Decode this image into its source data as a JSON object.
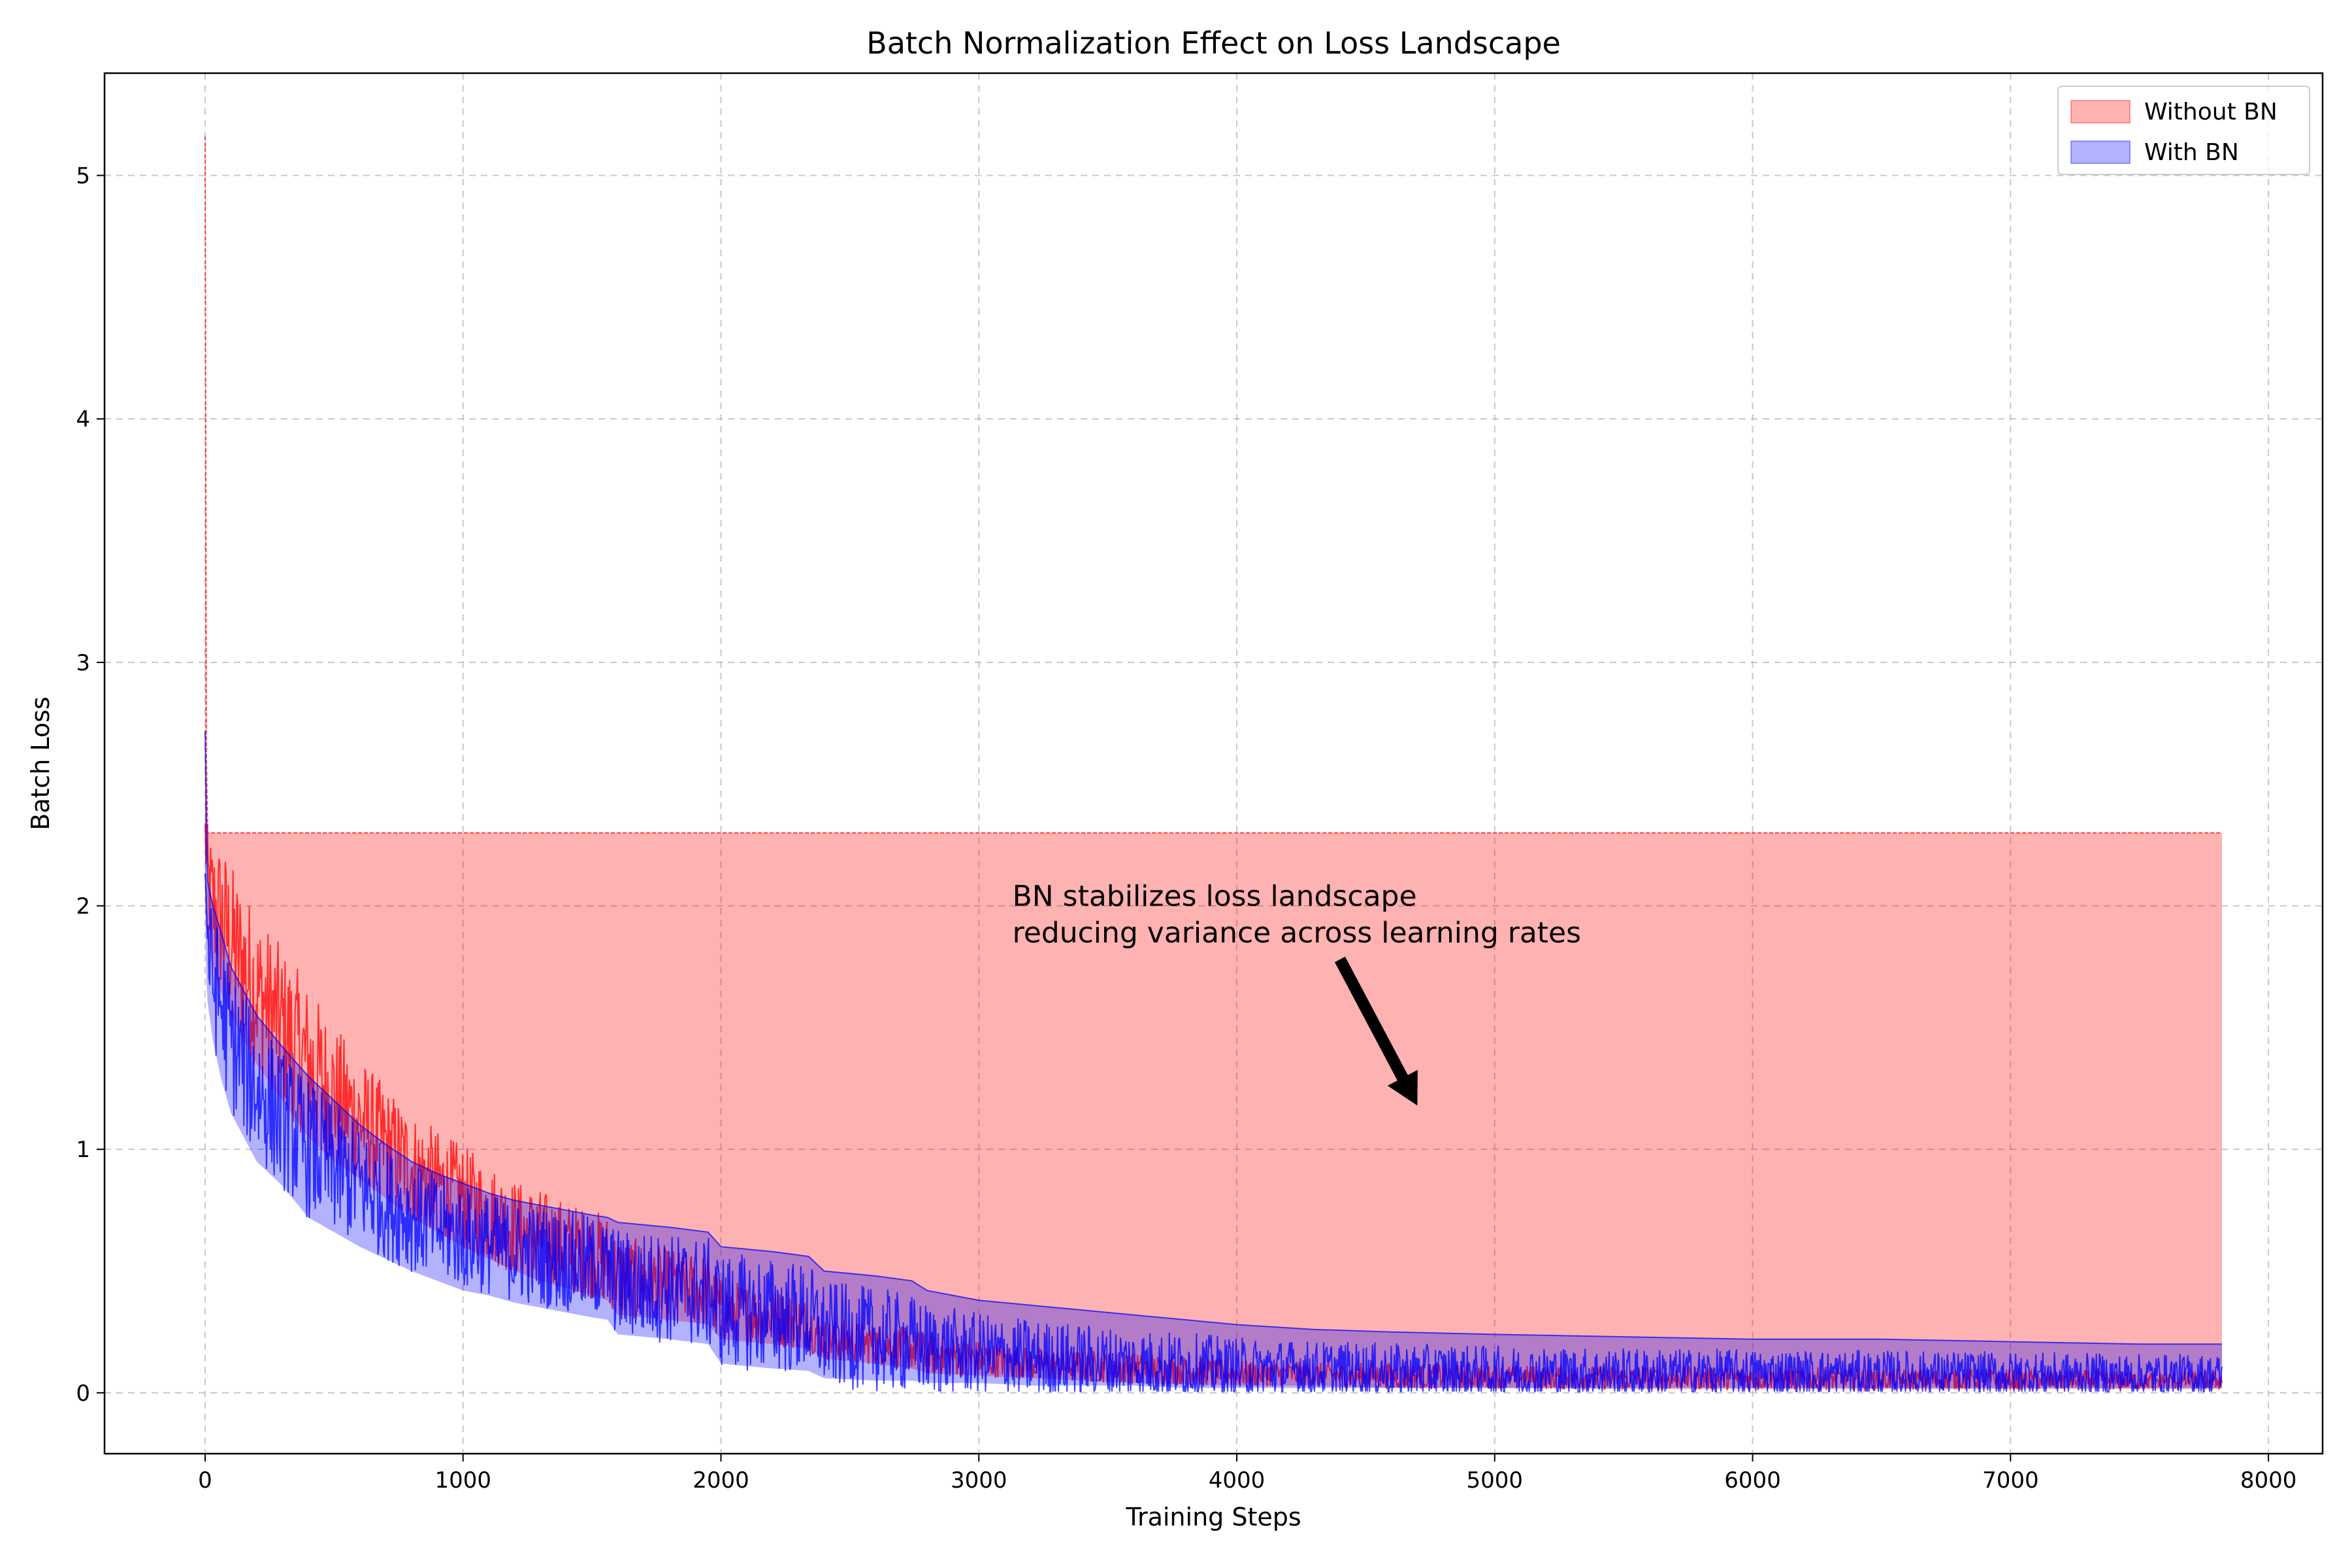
{
  "chart_data": {
    "type": "area",
    "title": "Batch Normalization Effect on Loss Landscape",
    "xlabel": "Training Steps",
    "ylabel": "Batch Loss",
    "xlim": [
      -390,
      8210
    ],
    "ylim": [
      -0.25,
      5.42
    ],
    "xticks": [
      0,
      1000,
      2000,
      3000,
      4000,
      5000,
      6000,
      7000,
      8000
    ],
    "yticks": [
      0,
      1,
      2,
      3,
      4,
      5
    ],
    "grid": true,
    "legend_position": "top-right",
    "annotation": {
      "text_lines": [
        "BN stabilizes loss landscape",
        "reducing variance across learning rates"
      ],
      "text_at": [
        3130,
        1.85
      ],
      "arrow_from": [
        4400,
        1.78
      ],
      "arrow_to": [
        4700,
        1.18
      ]
    },
    "series": [
      {
        "name": "Without BN",
        "color": "#ff0000",
        "fill_color": "#ff0000",
        "fill_alpha": 0.3,
        "x": [
          0,
          5,
          10,
          30,
          60,
          100,
          200,
          300,
          400,
          500,
          600,
          700,
          800,
          900,
          1000,
          1100,
          1200,
          1300,
          1400,
          1500,
          1560,
          1600,
          1800,
          1950,
          2000,
          2200,
          2340,
          2400,
          2600,
          2740,
          2800,
          3000,
          3200,
          3400,
          3600,
          3800,
          4000,
          4300,
          4600,
          5000,
          5500,
          6000,
          6500,
          7000,
          7500,
          7820
        ],
        "lower": [
          2.05,
          1.9,
          1.85,
          1.75,
          1.65,
          1.55,
          1.35,
          1.2,
          1.05,
          0.95,
          0.88,
          0.8,
          0.72,
          0.66,
          0.6,
          0.55,
          0.5,
          0.46,
          0.43,
          0.4,
          0.38,
          0.32,
          0.3,
          0.28,
          0.22,
          0.2,
          0.18,
          0.14,
          0.12,
          0.1,
          0.08,
          0.07,
          0.06,
          0.05,
          0.04,
          0.035,
          0.03,
          0.03,
          0.02,
          0.02,
          0.015,
          0.015,
          0.015,
          0.015,
          0.015,
          0.015
        ],
        "upper": [
          5.16,
          2.6,
          2.3,
          2.3,
          2.3,
          2.3,
          2.3,
          2.3,
          2.3,
          2.3,
          2.3,
          2.3,
          2.3,
          2.3,
          2.3,
          2.3,
          2.3,
          2.3,
          2.3,
          2.3,
          2.3,
          2.3,
          2.3,
          2.3,
          2.3,
          2.3,
          2.3,
          2.3,
          2.3,
          2.3,
          2.3,
          2.3,
          2.3,
          2.3,
          2.3,
          2.3,
          2.3,
          2.3,
          2.3,
          2.3,
          2.3,
          2.3,
          2.3,
          2.3,
          2.3,
          2.3
        ],
        "mean": [
          2.3,
          2.2,
          2.1,
          2.0,
          1.95,
          1.85,
          1.65,
          1.5,
          1.35,
          1.22,
          1.12,
          1.02,
          0.93,
          0.86,
          0.8,
          0.74,
          0.68,
          0.64,
          0.6,
          0.57,
          0.55,
          0.48,
          0.44,
          0.42,
          0.34,
          0.31,
          0.28,
          0.22,
          0.2,
          0.18,
          0.16,
          0.14,
          0.12,
          0.11,
          0.1,
          0.09,
          0.08,
          0.075,
          0.07,
          0.065,
          0.06,
          0.06,
          0.055,
          0.055,
          0.05,
          0.05
        ]
      },
      {
        "name": "With BN",
        "color": "#0000ff",
        "fill_color": "#0000ff",
        "fill_alpha": 0.3,
        "x": [
          0,
          5,
          10,
          30,
          60,
          100,
          200,
          300,
          400,
          500,
          600,
          700,
          800,
          900,
          1000,
          1100,
          1200,
          1300,
          1400,
          1500,
          1560,
          1600,
          1800,
          1950,
          2000,
          2200,
          2340,
          2400,
          2600,
          2740,
          2800,
          3000,
          3200,
          3400,
          3600,
          3800,
          4000,
          4300,
          4600,
          5000,
          5500,
          6000,
          6500,
          7000,
          7500,
          7820
        ],
        "lower": [
          2.0,
          1.7,
          1.6,
          1.45,
          1.3,
          1.15,
          0.95,
          0.85,
          0.72,
          0.66,
          0.6,
          0.55,
          0.5,
          0.46,
          0.42,
          0.4,
          0.37,
          0.35,
          0.33,
          0.31,
          0.3,
          0.24,
          0.22,
          0.2,
          0.12,
          0.1,
          0.09,
          0.06,
          0.05,
          0.05,
          0.04,
          0.04,
          0.03,
          0.03,
          0.03,
          0.02,
          0.02,
          0.02,
          0.02,
          0.02,
          0.02,
          0.02,
          0.02,
          0.02,
          0.02,
          0.02
        ],
        "upper": [
          2.72,
          2.35,
          2.1,
          2.0,
          1.9,
          1.75,
          1.55,
          1.42,
          1.3,
          1.2,
          1.1,
          1.02,
          0.95,
          0.9,
          0.86,
          0.82,
          0.79,
          0.77,
          0.75,
          0.73,
          0.72,
          0.7,
          0.68,
          0.66,
          0.6,
          0.58,
          0.56,
          0.5,
          0.48,
          0.46,
          0.42,
          0.38,
          0.36,
          0.34,
          0.32,
          0.3,
          0.28,
          0.26,
          0.25,
          0.24,
          0.23,
          0.22,
          0.22,
          0.21,
          0.2,
          0.2
        ],
        "mean": [
          2.3,
          2.0,
          1.85,
          1.7,
          1.6,
          1.45,
          1.25,
          1.12,
          1.0,
          0.92,
          0.85,
          0.78,
          0.72,
          0.68,
          0.64,
          0.61,
          0.58,
          0.56,
          0.54,
          0.52,
          0.5,
          0.45,
          0.43,
          0.41,
          0.34,
          0.32,
          0.3,
          0.24,
          0.22,
          0.2,
          0.18,
          0.16,
          0.14,
          0.13,
          0.12,
          0.11,
          0.1,
          0.095,
          0.09,
          0.085,
          0.08,
          0.08,
          0.075,
          0.075,
          0.07,
          0.07
        ]
      }
    ]
  }
}
